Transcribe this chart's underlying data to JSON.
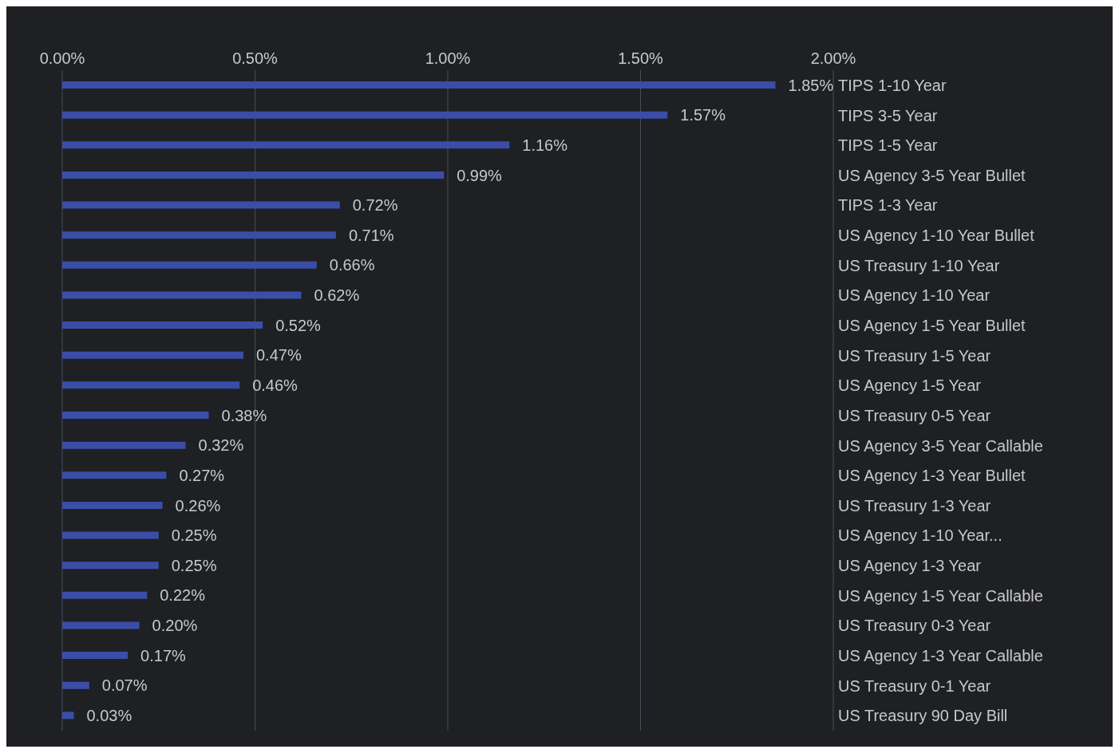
{
  "chart_data": {
    "type": "bar",
    "orientation": "horizontal",
    "categories": [
      "TIPS 1-10 Year",
      "TIPS 3-5 Year",
      "TIPS 1-5 Year",
      "US Agency 3-5 Year Bullet",
      "TIPS 1-3 Year",
      "US Agency 1-10 Year Bullet",
      "US Treasury 1-10 Year",
      "US Agency 1-10 Year",
      "US Agency 1-5 Year Bullet",
      "US Treasury 1-5 Year",
      "US Agency 1-5 Year",
      "US Treasury 0-5 Year",
      "US Agency 3-5 Year Callable",
      "US Agency 1-3 Year Bullet",
      "US Treasury 1-3 Year",
      "US Agency 1-10 Year...",
      "US Agency 1-3 Year",
      "US Agency 1-5 Year Callable",
      "US Treasury 0-3 Year",
      "US Agency 1-3 Year Callable",
      "US Treasury 0-1 Year",
      "US Treasury 90 Day Bill"
    ],
    "values": [
      1.85,
      1.57,
      1.16,
      0.99,
      0.72,
      0.71,
      0.66,
      0.62,
      0.52,
      0.47,
      0.46,
      0.38,
      0.32,
      0.27,
      0.26,
      0.25,
      0.25,
      0.22,
      0.2,
      0.17,
      0.07,
      0.03
    ],
    "value_labels": [
      "1.85%",
      "1.57%",
      "1.16%",
      "0.99%",
      "0.72%",
      "0.71%",
      "0.66%",
      "0.62%",
      "0.52%",
      "0.47%",
      "0.46%",
      "0.38%",
      "0.32%",
      "0.27%",
      "0.26%",
      "0.25%",
      "0.25%",
      "0.22%",
      "0.20%",
      "0.17%",
      "0.07%",
      "0.03%"
    ],
    "color": "#3a4ea8",
    "xlim": [
      0,
      2
    ],
    "xticks": [
      {
        "value": 0,
        "label": "0.00%"
      },
      {
        "value": 0.5,
        "label": "0.50%"
      },
      {
        "value": 1,
        "label": "1.00%"
      },
      {
        "value": 1.5,
        "label": "1.50%"
      },
      {
        "value": 2,
        "label": "2.00%"
      }
    ],
    "grid": "x",
    "legend": false
  }
}
